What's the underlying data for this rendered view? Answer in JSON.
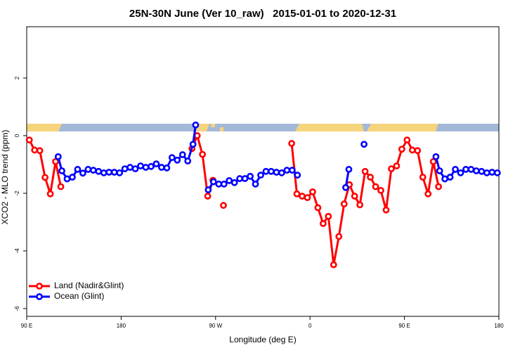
{
  "chart_data": {
    "type": "line",
    "title": "25N-30N June (Ver 10_raw)   2015-01-01 to 2020-12-31",
    "x_label": "Longitude (deg E)",
    "y_label": "XCO2 - MLO trend (ppm)",
    "xlim": [
      90,
      540
    ],
    "ylim": [
      -6.27,
      3.78
    ],
    "xticks": [
      {
        "value": 90,
        "label": "90 E"
      },
      180,
      {
        "value": 270,
        "label": "90 W"
      },
      {
        "value": 360,
        "label": "0"
      },
      {
        "value": 450,
        "label": "90 E"
      },
      {
        "value": 540,
        "label": "180"
      }
    ],
    "yticks": [
      -6,
      -4,
      -2,
      0,
      2
    ],
    "legend": "bottomleft",
    "series": [
      {
        "name": "Land (Nadir&Glint)",
        "color": "#ff0000",
        "x": [
          92.5,
          97.5,
          102.5,
          107.5,
          112.5,
          117.5,
          122.5,
          null,
          247.5,
          252.5,
          257.5,
          262.5,
          267.5,
          null,
          277.5,
          null,
          342.5,
          347.5,
          352.5,
          357.5,
          362.5,
          367.5,
          372.5,
          377.5,
          382.5,
          387.5,
          392.5,
          397.5,
          402.5,
          407.5,
          412.5,
          417.5,
          422.5,
          427.5,
          432.5,
          437.5,
          442.5,
          447.5,
          452.5,
          457.5,
          462.5,
          467.5,
          472.5,
          477.5,
          482.5
        ],
        "values": [
          -0.15,
          -0.5,
          -0.52,
          -1.45,
          -2.02,
          -0.9,
          -1.77,
          null,
          -0.45,
          0.0,
          -0.65,
          -2.1,
          -1.55,
          null,
          -2.42,
          null,
          -0.27,
          -2.02,
          -2.1,
          -2.15,
          -1.95,
          -2.5,
          -3.05,
          -2.8,
          -4.48,
          -3.5,
          -2.37,
          -1.7,
          -2.1,
          -2.4,
          -1.24,
          -1.44,
          -1.77,
          -1.9,
          -2.58,
          -1.15,
          -1.05,
          -0.47,
          -0.15,
          -0.5,
          -0.52,
          -1.44,
          -2.02,
          -0.9,
          -1.77
        ]
      },
      {
        "name": "Ocean (Glint)",
        "color": "#0000ff",
        "x": [
          120,
          123.5,
          128.5,
          133.5,
          138.5,
          143.5,
          148.5,
          153.5,
          158.5,
          163.5,
          168.5,
          173.5,
          178.5,
          183.5,
          188.5,
          193.5,
          198.5,
          203.5,
          208.5,
          213.5,
          218.5,
          223.5,
          228.5,
          233.5,
          238.5,
          243.5,
          248.5,
          251,
          null,
          263,
          268,
          273,
          278,
          283,
          288,
          293,
          298,
          303,
          308,
          313,
          318,
          323,
          328,
          333,
          338,
          343,
          348,
          null,
          394,
          397,
          null,
          411.5,
          null,
          480,
          483.5,
          488.5,
          493.5,
          498.5,
          503.5,
          508.5,
          513.5,
          518.5,
          523.5,
          528.5,
          533.5,
          538.5
        ],
        "values": [
          -0.73,
          -1.22,
          -1.5,
          -1.44,
          -1.17,
          -1.3,
          -1.17,
          -1.2,
          -1.24,
          -1.29,
          -1.27,
          -1.27,
          -1.29,
          -1.15,
          -1.1,
          -1.15,
          -1.05,
          -1.1,
          -1.07,
          -0.98,
          -1.1,
          -1.12,
          -0.76,
          -0.85,
          -0.66,
          -0.88,
          -0.3,
          0.37,
          null,
          -1.88,
          -1.6,
          -1.68,
          -1.68,
          -1.56,
          -1.63,
          -1.49,
          -1.49,
          -1.41,
          -1.68,
          -1.37,
          -1.24,
          -1.24,
          -1.27,
          -1.29,
          -1.2,
          -1.2,
          -1.37,
          null,
          -1.8,
          -1.17,
          null,
          -0.3,
          null,
          -0.73,
          -1.22,
          -1.5,
          -1.44,
          -1.17,
          -1.29,
          -1.17,
          -1.17,
          -1.22,
          -1.24,
          -1.29,
          -1.27,
          -1.29
        ]
      }
    ]
  }
}
